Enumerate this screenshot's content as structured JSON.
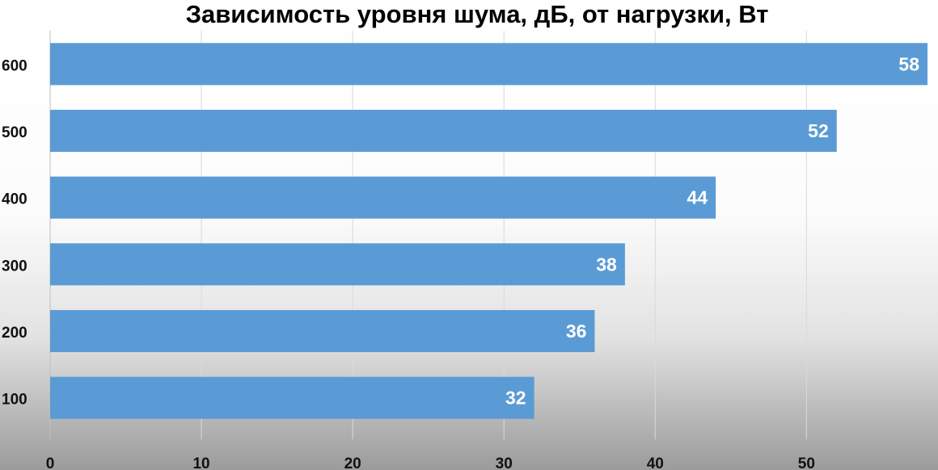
{
  "chart_data": {
    "type": "bar",
    "orientation": "horizontal",
    "title": "Зависимость уровня шума, дБ, от нагрузки, Вт",
    "categories": [
      "600",
      "500",
      "400",
      "300",
      "200",
      "100"
    ],
    "values": [
      58,
      52,
      44,
      38,
      36,
      32
    ],
    "xlim": [
      0,
      58
    ],
    "x_ticks": [
      0,
      10,
      20,
      30,
      40,
      50
    ],
    "grid": true,
    "bar_color": "#5b9bd5",
    "data_label_color": "#ffffff"
  }
}
